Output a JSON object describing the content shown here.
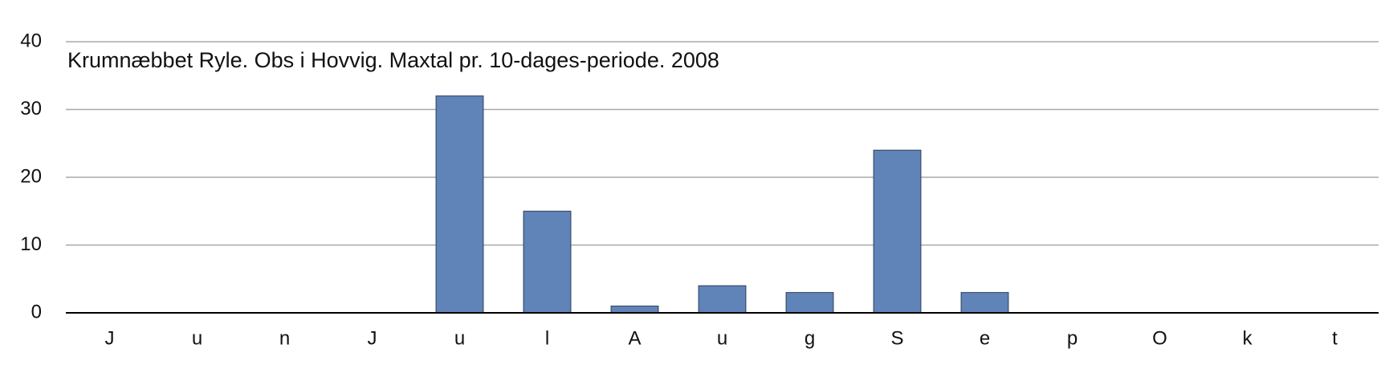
{
  "chart_data": {
    "type": "bar",
    "title": "Krumnæbbet Ryle. Obs i Hovvig. Maxtal pr. 10-dages-periode. 2008",
    "categories": [
      "J",
      "u",
      "n",
      "J",
      "u",
      "l",
      "A",
      "u",
      "g",
      "S",
      "e",
      "p",
      "O",
      "k",
      "t"
    ],
    "values": [
      0,
      0,
      0,
      0,
      32,
      15,
      1,
      4,
      3,
      24,
      3,
      0,
      0,
      0,
      0
    ],
    "color": "#6083b8",
    "ylim": [
      0,
      40
    ],
    "yticks": [
      0,
      10,
      20,
      30,
      40
    ],
    "grid": true
  }
}
